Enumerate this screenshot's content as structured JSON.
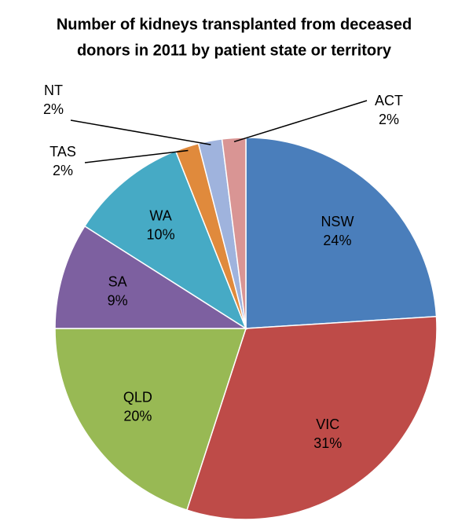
{
  "chart_data": {
    "type": "pie",
    "title": [
      "Number of kidneys transplanted from deceased",
      "donors in 2011 by patient state or territory"
    ],
    "categories": [
      "NSW",
      "VIC",
      "QLD",
      "SA",
      "WA",
      "TAS",
      "NT",
      "ACT"
    ],
    "values": [
      24,
      31,
      20,
      9,
      10,
      2,
      2,
      2
    ],
    "value_labels": [
      "24%",
      "31%",
      "20%",
      "9%",
      "10%",
      "2%",
      "2%",
      "2%"
    ],
    "colors": [
      "#4a7ebb",
      "#be4b48",
      "#98b954",
      "#7d60a0",
      "#46aac5",
      "#e08a3c",
      "#9fb3dd",
      "#d99594"
    ]
  }
}
